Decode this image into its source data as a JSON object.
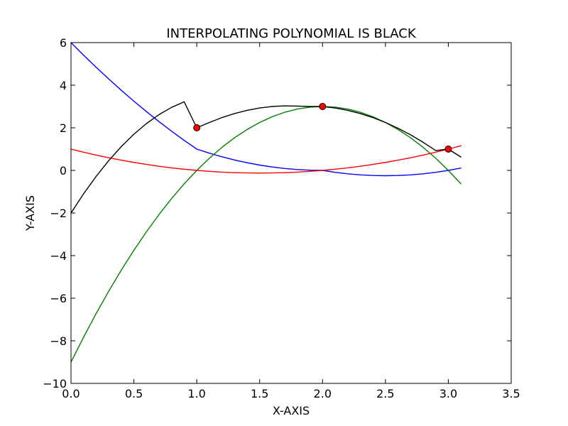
{
  "chart_data": {
    "type": "line",
    "title": "INTERPOLATING POLYNOMIAL IS BLACK",
    "xlabel": "X-AXIS",
    "ylabel": "Y-AXIS",
    "xlim": [
      0.0,
      3.5
    ],
    "ylim": [
      -10,
      6
    ],
    "xticks": [
      0.0,
      0.5,
      1.0,
      1.5,
      2.0,
      2.5,
      3.0,
      3.5
    ],
    "xtick_labels": [
      "0.0",
      "0.5",
      "1.0",
      "1.5",
      "2.0",
      "2.5",
      "3.0",
      "3.5"
    ],
    "yticks": [
      -10,
      -8,
      -6,
      -4,
      -2,
      0,
      2,
      4,
      6
    ],
    "ytick_labels": [
      "−10",
      "−8",
      "−6",
      "−4",
      "−2",
      "0",
      "2",
      "4",
      "6"
    ],
    "grid": false,
    "series": [
      {
        "color": "#0000ff",
        "x": [
          0.0,
          0.1,
          0.2,
          0.3,
          0.4,
          0.5,
          0.6,
          0.7,
          0.8,
          0.9,
          1.0,
          1.1,
          1.2,
          1.3,
          1.4,
          1.5,
          1.6,
          1.7,
          1.8,
          1.9,
          2.0,
          2.1,
          2.2,
          2.3,
          2.4,
          2.5,
          2.6,
          2.7,
          2.8,
          2.9,
          3.0,
          3.1
        ],
        "y": [
          6.0,
          5.41,
          4.84,
          4.29,
          3.76,
          3.25,
          2.76,
          2.29,
          1.84,
          1.41,
          1.0,
          0.81,
          0.64,
          0.49,
          0.36,
          0.25,
          0.16,
          0.09,
          0.04,
          0.01,
          0.0,
          -0.09,
          -0.16,
          -0.21,
          -0.24,
          -0.25,
          -0.24,
          -0.21,
          -0.16,
          -0.09,
          0.0,
          0.11
        ]
      },
      {
        "color": "#008000",
        "x": [
          0.0,
          0.1,
          0.2,
          0.3,
          0.4,
          0.5,
          0.6,
          0.7,
          0.8,
          0.9,
          1.0,
          1.1,
          1.2,
          1.3,
          1.4,
          1.5,
          1.6,
          1.7,
          1.8,
          1.9,
          2.0,
          2.1,
          2.2,
          2.3,
          2.4,
          2.5,
          2.6,
          2.7,
          2.8,
          2.9,
          3.0,
          3.1
        ],
        "y": [
          -9.0,
          -7.83,
          -6.72,
          -5.67,
          -4.68,
          -3.75,
          -2.88,
          -2.07,
          -1.32,
          -0.63,
          0.0,
          0.57,
          1.08,
          1.53,
          1.92,
          2.25,
          2.52,
          2.73,
          2.88,
          2.97,
          3.0,
          2.97,
          2.88,
          2.73,
          2.52,
          2.25,
          1.92,
          1.53,
          1.08,
          0.57,
          0.0,
          -0.63
        ]
      },
      {
        "color": "#ff0000",
        "x": [
          0.0,
          0.1,
          0.2,
          0.3,
          0.4,
          0.5,
          0.6,
          0.7,
          0.8,
          0.9,
          1.0,
          1.1,
          1.2,
          1.3,
          1.4,
          1.5,
          1.6,
          1.7,
          1.8,
          1.9,
          2.0,
          2.1,
          2.2,
          2.3,
          2.4,
          2.5,
          2.6,
          2.7,
          2.8,
          2.9,
          3.0,
          3.1
        ],
        "y": [
          1.0,
          0.855,
          0.72,
          0.595,
          0.48,
          0.375,
          0.28,
          0.195,
          0.12,
          0.055,
          0.0,
          -0.045,
          -0.08,
          -0.105,
          -0.12,
          -0.125,
          -0.12,
          -0.105,
          -0.08,
          -0.045,
          0.0,
          0.055,
          0.12,
          0.195,
          0.28,
          0.375,
          0.48,
          0.595,
          0.72,
          0.855,
          1.0,
          1.155
        ]
      },
      {
        "color": "#000000",
        "x": [
          0.0,
          0.1,
          0.2,
          0.3,
          0.4,
          0.5,
          0.6,
          0.7,
          0.8,
          0.9,
          1.0,
          1.1,
          1.2,
          1.3,
          1.4,
          1.5,
          1.6,
          1.7,
          1.8,
          1.9,
          2.0,
          2.1,
          2.2,
          2.3,
          2.4,
          2.5,
          2.6,
          2.7,
          2.8,
          2.9,
          3.0,
          3.1
        ],
        "y": [
          -2.0,
          -1.1,
          -0.28,
          0.46,
          1.12,
          1.7,
          2.2,
          2.62,
          2.96,
          3.22,
          2.0,
          2.25,
          2.48,
          2.67,
          2.82,
          2.93,
          3.0,
          3.03,
          3.02,
          3.0,
          3.0,
          2.93,
          2.82,
          2.67,
          2.48,
          2.25,
          1.98,
          1.67,
          1.32,
          0.93,
          1.0,
          0.63
        ]
      }
    ],
    "points": {
      "color": "#ff0000",
      "x": [
        1.0,
        2.0,
        3.0
      ],
      "y": [
        2.0,
        3.0,
        1.0
      ]
    }
  }
}
